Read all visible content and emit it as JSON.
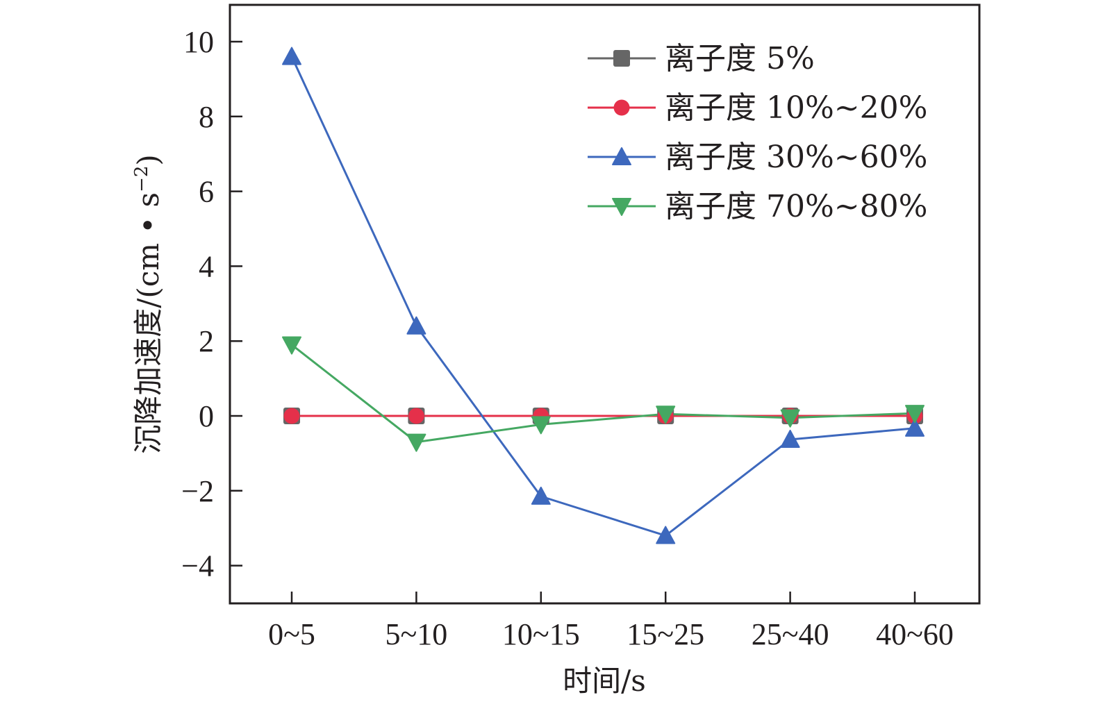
{
  "chart_data": {
    "type": "line",
    "title": "",
    "xlabel": "时间/s",
    "ylabel": "沉降加速度/(cm • s",
    "ylabel_sup": "−2",
    "ylabel_close": ")",
    "categories": [
      "0~5",
      "5~10",
      "10~15",
      "15~25",
      "25~40",
      "40~60"
    ],
    "ylim": [
      -5,
      11
    ],
    "yticks": [
      -4,
      -2,
      0,
      2,
      4,
      6,
      8,
      10
    ],
    "ytick_labels": [
      "−4",
      "−2",
      "0",
      "2",
      "4",
      "6",
      "8",
      "10"
    ],
    "grid": false,
    "legend_position": "top-right",
    "series": [
      {
        "name": "离子度 5%",
        "color": "#666666",
        "marker": "square",
        "values": [
          0,
          0,
          0,
          0,
          0,
          0
        ]
      },
      {
        "name": "离子度 10%~20%",
        "color": "#e5304a",
        "marker": "circle",
        "values": [
          0,
          0,
          0,
          0,
          0,
          0
        ]
      },
      {
        "name": "离子度 30%~60%",
        "color": "#3d68bd",
        "marker": "triangle-up",
        "values": [
          9.6,
          2.4,
          -2.15,
          -3.2,
          -0.63,
          -0.33
        ]
      },
      {
        "name": "离子度 70%~80%",
        "color": "#45a862",
        "marker": "triangle-down",
        "values": [
          1.9,
          -0.7,
          -0.23,
          0.05,
          -0.05,
          0.07
        ]
      }
    ]
  }
}
